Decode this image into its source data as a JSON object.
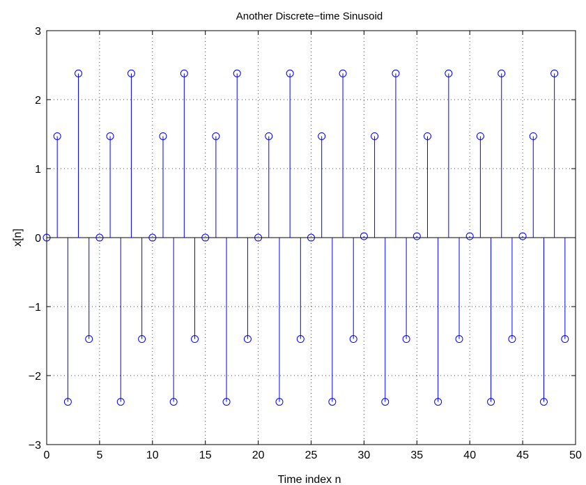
{
  "chart_data": {
    "type": "stem",
    "title": "Another Discrete−time Sinusoid",
    "xlabel": "Time index n",
    "ylabel": "x[n]",
    "xlim": [
      0,
      50
    ],
    "ylim": [
      -3,
      3
    ],
    "grid": true,
    "x_ticks": [
      0,
      5,
      10,
      15,
      20,
      25,
      30,
      35,
      40,
      45,
      50
    ],
    "x_tick_labels": [
      "0",
      "5",
      "10",
      "15",
      "20",
      "25",
      "30",
      "35",
      "40",
      "45",
      "50"
    ],
    "y_ticks": [
      -3,
      -2,
      -1,
      0,
      1,
      2,
      3
    ],
    "y_tick_labels": [
      "−3",
      "−2",
      "−1",
      "0",
      "1",
      "2",
      "3"
    ],
    "series": [
      {
        "color": "#0000ff",
        "marker": "circle",
        "x": [
          0,
          1,
          2,
          3,
          4,
          5,
          6,
          7,
          8,
          9,
          10,
          11,
          12,
          13,
          14,
          15,
          16,
          17,
          18,
          19,
          20,
          21,
          22,
          23,
          24,
          25,
          26,
          27,
          28,
          29,
          30,
          31,
          32,
          33,
          34,
          35,
          36,
          37,
          38,
          39,
          40,
          41,
          42,
          43,
          44,
          45,
          46,
          47,
          48,
          49
        ],
        "y": [
          0,
          1.47,
          -2.38,
          2.38,
          -1.47,
          0,
          1.47,
          -2.38,
          2.38,
          -1.47,
          0,
          1.47,
          -2.38,
          2.38,
          -1.47,
          0,
          1.47,
          -2.38,
          2.38,
          -1.47,
          0,
          1.47,
          -2.38,
          2.38,
          -1.47,
          0,
          1.47,
          -2.38,
          2.38,
          -1.47,
          0.02,
          1.47,
          -2.38,
          2.38,
          -1.47,
          0.02,
          1.47,
          -2.38,
          2.38,
          -1.47,
          0.02,
          1.47,
          -2.38,
          2.38,
          -1.47,
          0.02,
          1.47,
          -2.38,
          2.38,
          -1.47
        ]
      }
    ]
  }
}
